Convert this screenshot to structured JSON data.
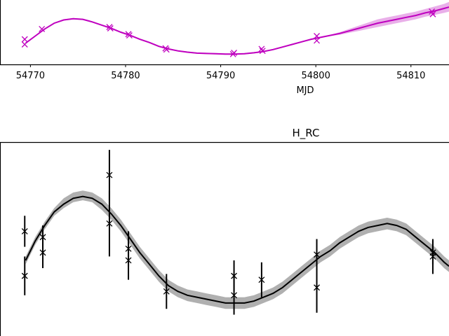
{
  "chart_data": [
    {
      "type": "line",
      "title": "",
      "xlabel": "MJD",
      "ylabel": "",
      "xlim": [
        54766.8,
        54814.0
      ],
      "ylim": [
        0.0,
        1.0
      ],
      "x_ticks": [
        54770,
        54780,
        54790,
        54800,
        54810
      ],
      "x_tick_labels": [
        "54770",
        "54780",
        "54790",
        "54800",
        "54810"
      ],
      "color": "#bf00bf",
      "band_color": "#e08de0",
      "model": {
        "x": [
          54769.5,
          54770.5,
          54771.5,
          54772.5,
          54773.5,
          54774.5,
          54775.5,
          54776.5,
          54777.5,
          54778.5,
          54779.5,
          54780.5,
          54781.5,
          54782.5,
          54783.5,
          54784.5,
          54785.5,
          54786.5,
          54787.5,
          54788.5,
          54789.5,
          54790.5,
          54791.5,
          54792.5,
          54793.5,
          54794.5,
          54795.5,
          54796.5,
          54797.5,
          54798.5,
          54799.5,
          54800.5,
          54801.5,
          54802.5,
          54803.5,
          54804.5,
          54805.5,
          54806.5,
          54807.5,
          54808.5,
          54809.5,
          54810.5,
          54811.5,
          54812.5,
          54813.5,
          54814.0
        ],
        "y": [
          0.33,
          0.44,
          0.55,
          0.64,
          0.69,
          0.71,
          0.7,
          0.66,
          0.61,
          0.56,
          0.5,
          0.45,
          0.39,
          0.34,
          0.28,
          0.24,
          0.21,
          0.19,
          0.175,
          0.17,
          0.165,
          0.16,
          0.16,
          0.165,
          0.18,
          0.2,
          0.23,
          0.27,
          0.31,
          0.35,
          0.39,
          0.42,
          0.45,
          0.48,
          0.52,
          0.56,
          0.6,
          0.64,
          0.67,
          0.7,
          0.73,
          0.76,
          0.8,
          0.83,
          0.87,
          0.89
        ],
        "lower": [
          0.32,
          0.43,
          0.54,
          0.63,
          0.68,
          0.7,
          0.69,
          0.65,
          0.6,
          0.55,
          0.49,
          0.44,
          0.38,
          0.33,
          0.27,
          0.23,
          0.2,
          0.18,
          0.165,
          0.16,
          0.155,
          0.15,
          0.15,
          0.155,
          0.17,
          0.19,
          0.22,
          0.26,
          0.3,
          0.34,
          0.38,
          0.41,
          0.44,
          0.46,
          0.49,
          0.52,
          0.55,
          0.58,
          0.61,
          0.64,
          0.67,
          0.7,
          0.74,
          0.77,
          0.8,
          0.82
        ],
        "upper": [
          0.34,
          0.45,
          0.56,
          0.65,
          0.7,
          0.72,
          0.71,
          0.67,
          0.62,
          0.57,
          0.51,
          0.46,
          0.4,
          0.35,
          0.29,
          0.25,
          0.22,
          0.2,
          0.185,
          0.18,
          0.175,
          0.17,
          0.17,
          0.175,
          0.19,
          0.21,
          0.24,
          0.28,
          0.32,
          0.36,
          0.4,
          0.43,
          0.46,
          0.5,
          0.55,
          0.6,
          0.65,
          0.7,
          0.73,
          0.76,
          0.79,
          0.82,
          0.86,
          0.9,
          0.94,
          0.97
        ]
      },
      "observations": {
        "x": [
          54769.4,
          54769.4,
          54771.2,
          54778.3,
          54778.4,
          54780.3,
          54780.4,
          54784.2,
          54784.3,
          54791.3,
          54791.4,
          54794.3,
          54794.4,
          54800.1,
          54800.1,
          54812.2,
          54812.3
        ],
        "y": [
          0.39,
          0.31,
          0.55,
          0.58,
          0.56,
          0.47,
          0.45,
          0.25,
          0.23,
          0.16,
          0.18,
          0.24,
          0.21,
          0.44,
          0.37,
          0.82,
          0.78
        ]
      }
    },
    {
      "type": "line",
      "title": "H_RC",
      "xlabel": "",
      "ylabel": "",
      "xlim": [
        54766.8,
        54814.0
      ],
      "ylim": [
        0.0,
        1.0
      ],
      "color": "#000000",
      "band_color": "#b0b0b0",
      "model": {
        "x": [
          54769.5,
          54770.5,
          54771.5,
          54772.5,
          54773.5,
          54774.5,
          54775.5,
          54776.5,
          54777.5,
          54778.5,
          54779.5,
          54780.5,
          54781.5,
          54782.5,
          54783.5,
          54784.5,
          54785.5,
          54786.5,
          54787.5,
          54788.5,
          54789.5,
          54790.5,
          54791.5,
          54792.5,
          54793.5,
          54794.5,
          54795.5,
          54796.5,
          54797.5,
          54798.5,
          54799.5,
          54800.5,
          54801.5,
          54802.5,
          54803.5,
          54804.5,
          54805.5,
          54806.5,
          54807.5,
          54808.5,
          54809.5,
          54810.5,
          54811.5,
          54812.5,
          54813.5,
          54814.0
        ],
        "y": [
          0.39,
          0.49,
          0.57,
          0.64,
          0.68,
          0.71,
          0.72,
          0.71,
          0.68,
          0.63,
          0.57,
          0.5,
          0.43,
          0.37,
          0.31,
          0.26,
          0.23,
          0.21,
          0.2,
          0.19,
          0.18,
          0.17,
          0.17,
          0.17,
          0.18,
          0.2,
          0.22,
          0.25,
          0.29,
          0.33,
          0.37,
          0.41,
          0.44,
          0.48,
          0.51,
          0.54,
          0.56,
          0.57,
          0.58,
          0.57,
          0.55,
          0.51,
          0.47,
          0.43,
          0.38,
          0.36
        ],
        "lower": [
          0.37,
          0.47,
          0.55,
          0.62,
          0.66,
          0.69,
          0.7,
          0.69,
          0.65,
          0.6,
          0.54,
          0.47,
          0.4,
          0.34,
          0.28,
          0.23,
          0.2,
          0.18,
          0.17,
          0.16,
          0.15,
          0.14,
          0.14,
          0.14,
          0.15,
          0.17,
          0.19,
          0.22,
          0.26,
          0.3,
          0.34,
          0.38,
          0.41,
          0.45,
          0.48,
          0.51,
          0.53,
          0.54,
          0.55,
          0.54,
          0.52,
          0.48,
          0.44,
          0.4,
          0.35,
          0.33
        ],
        "upper": [
          0.41,
          0.51,
          0.59,
          0.66,
          0.71,
          0.74,
          0.75,
          0.74,
          0.71,
          0.66,
          0.6,
          0.53,
          0.46,
          0.4,
          0.34,
          0.29,
          0.26,
          0.24,
          0.23,
          0.22,
          0.21,
          0.2,
          0.2,
          0.2,
          0.21,
          0.23,
          0.25,
          0.28,
          0.32,
          0.36,
          0.4,
          0.44,
          0.47,
          0.51,
          0.54,
          0.57,
          0.59,
          0.6,
          0.61,
          0.6,
          0.58,
          0.54,
          0.5,
          0.46,
          0.41,
          0.39
        ]
      },
      "observations": {
        "x": [
          54769.4,
          54769.4,
          54771.3,
          54771.3,
          54778.3,
          54778.3,
          54780.3,
          54780.3,
          54784.3,
          54791.4,
          54791.4,
          54794.3,
          54800.1,
          54800.1,
          54812.3,
          54812.3
        ],
        "y": [
          0.54,
          0.31,
          0.51,
          0.43,
          0.83,
          0.58,
          0.45,
          0.39,
          0.23,
          0.31,
          0.21,
          0.29,
          0.42,
          0.25,
          0.43,
          0.41
        ],
        "err": [
          0.08,
          0.1,
          0.06,
          0.08,
          0.13,
          0.17,
          0.09,
          0.1,
          0.09,
          0.08,
          0.1,
          0.09,
          0.08,
          0.13,
          0.06,
          0.09
        ]
      }
    }
  ]
}
